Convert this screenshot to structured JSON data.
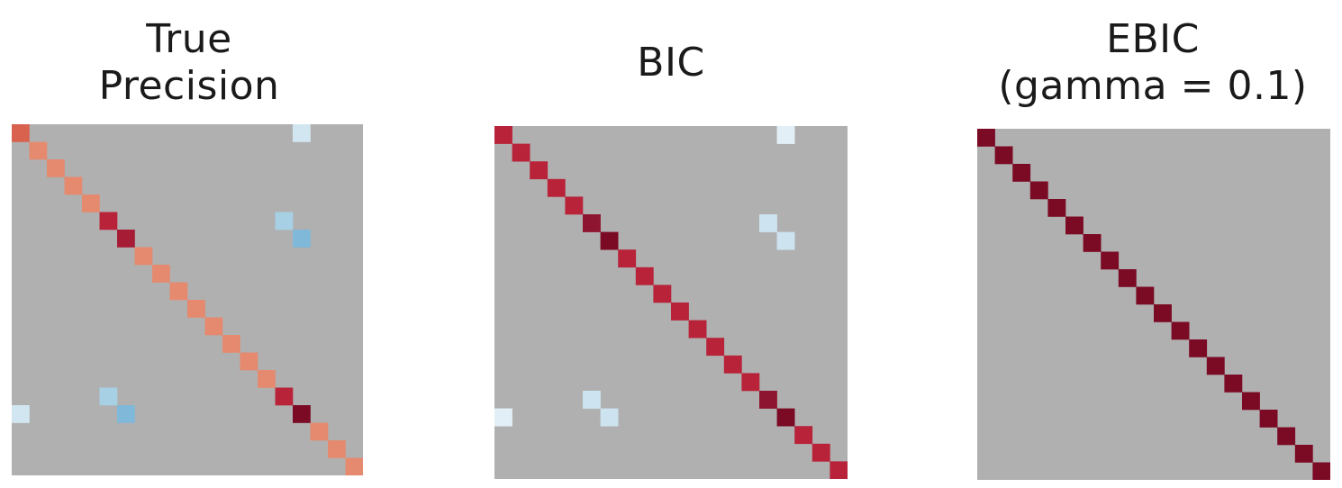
{
  "figure": {
    "background": "#ffffff",
    "cell_background": "#b0b0b0"
  },
  "chart_data": [
    {
      "type": "heatmap",
      "title_lines": [
        "True",
        "Precision"
      ],
      "size": 20,
      "background_color": "#b0b0b0",
      "diagonal": [
        {
          "i": 0,
          "j": 0,
          "color": "#d9624f"
        },
        {
          "i": 1,
          "j": 1,
          "color": "#e58a6f"
        },
        {
          "i": 2,
          "j": 2,
          "color": "#e58a6f"
        },
        {
          "i": 3,
          "j": 3,
          "color": "#e58a6f"
        },
        {
          "i": 4,
          "j": 4,
          "color": "#e58a6f"
        },
        {
          "i": 5,
          "j": 5,
          "color": "#b8233a"
        },
        {
          "i": 6,
          "j": 6,
          "color": "#a61c34"
        },
        {
          "i": 7,
          "j": 7,
          "color": "#e58a6f"
        },
        {
          "i": 8,
          "j": 8,
          "color": "#e58a6f"
        },
        {
          "i": 9,
          "j": 9,
          "color": "#e58a6f"
        },
        {
          "i": 10,
          "j": 10,
          "color": "#e58a6f"
        },
        {
          "i": 11,
          "j": 11,
          "color": "#e58a6f"
        },
        {
          "i": 12,
          "j": 12,
          "color": "#e58a6f"
        },
        {
          "i": 13,
          "j": 13,
          "color": "#e58a6f"
        },
        {
          "i": 14,
          "j": 14,
          "color": "#e58a6f"
        },
        {
          "i": 15,
          "j": 15,
          "color": "#b8233a"
        },
        {
          "i": 16,
          "j": 16,
          "color": "#7b0a25"
        },
        {
          "i": 17,
          "j": 17,
          "color": "#e58a6f"
        },
        {
          "i": 18,
          "j": 18,
          "color": "#e58a6f"
        },
        {
          "i": 19,
          "j": 19,
          "color": "#e58a6f"
        }
      ],
      "off_diagonal": [
        {
          "i": 0,
          "j": 16,
          "color": "#d1e6f1"
        },
        {
          "i": 5,
          "j": 15,
          "color": "#a7d0e4"
        },
        {
          "i": 6,
          "j": 16,
          "color": "#7fb8d9"
        },
        {
          "i": 15,
          "j": 5,
          "color": "#a7d0e4"
        },
        {
          "i": 16,
          "j": 6,
          "color": "#7fb8d9"
        },
        {
          "i": 16,
          "j": 0,
          "color": "#d1e6f1"
        }
      ]
    },
    {
      "type": "heatmap",
      "title_lines": [
        "BIC"
      ],
      "size": 20,
      "background_color": "#b0b0b0",
      "diagonal": [
        {
          "i": 0,
          "j": 0,
          "color": "#b8233a"
        },
        {
          "i": 1,
          "j": 1,
          "color": "#b8233a"
        },
        {
          "i": 2,
          "j": 2,
          "color": "#b8233a"
        },
        {
          "i": 3,
          "j": 3,
          "color": "#b8233a"
        },
        {
          "i": 4,
          "j": 4,
          "color": "#b8233a"
        },
        {
          "i": 5,
          "j": 5,
          "color": "#8e1530"
        },
        {
          "i": 6,
          "j": 6,
          "color": "#7b0a25"
        },
        {
          "i": 7,
          "j": 7,
          "color": "#b8233a"
        },
        {
          "i": 8,
          "j": 8,
          "color": "#b8233a"
        },
        {
          "i": 9,
          "j": 9,
          "color": "#b8233a"
        },
        {
          "i": 10,
          "j": 10,
          "color": "#b8233a"
        },
        {
          "i": 11,
          "j": 11,
          "color": "#b8233a"
        },
        {
          "i": 12,
          "j": 12,
          "color": "#b8233a"
        },
        {
          "i": 13,
          "j": 13,
          "color": "#b8233a"
        },
        {
          "i": 14,
          "j": 14,
          "color": "#b8233a"
        },
        {
          "i": 15,
          "j": 15,
          "color": "#8e1530"
        },
        {
          "i": 16,
          "j": 16,
          "color": "#7b0a25"
        },
        {
          "i": 17,
          "j": 17,
          "color": "#b8233a"
        },
        {
          "i": 18,
          "j": 18,
          "color": "#b8233a"
        },
        {
          "i": 19,
          "j": 19,
          "color": "#b8233a"
        }
      ],
      "off_diagonal": [
        {
          "i": 0,
          "j": 16,
          "color": "#e3eff6"
        },
        {
          "i": 5,
          "j": 15,
          "color": "#cde3ef"
        },
        {
          "i": 6,
          "j": 16,
          "color": "#cde3ef"
        },
        {
          "i": 15,
          "j": 5,
          "color": "#cde3ef"
        },
        {
          "i": 16,
          "j": 6,
          "color": "#cde3ef"
        },
        {
          "i": 16,
          "j": 0,
          "color": "#e3eff6"
        }
      ]
    },
    {
      "type": "heatmap",
      "title_lines": [
        "EBIC",
        "(gamma = 0.1)"
      ],
      "size": 20,
      "background_color": "#b0b0b0",
      "diagonal": [
        {
          "i": 0,
          "j": 0,
          "color": "#7b0a25"
        },
        {
          "i": 1,
          "j": 1,
          "color": "#7b0a25"
        },
        {
          "i": 2,
          "j": 2,
          "color": "#7b0a25"
        },
        {
          "i": 3,
          "j": 3,
          "color": "#7b0a25"
        },
        {
          "i": 4,
          "j": 4,
          "color": "#7b0a25"
        },
        {
          "i": 5,
          "j": 5,
          "color": "#7b0a25"
        },
        {
          "i": 6,
          "j": 6,
          "color": "#7b0a25"
        },
        {
          "i": 7,
          "j": 7,
          "color": "#7b0a25"
        },
        {
          "i": 8,
          "j": 8,
          "color": "#7b0a25"
        },
        {
          "i": 9,
          "j": 9,
          "color": "#7b0a25"
        },
        {
          "i": 10,
          "j": 10,
          "color": "#7b0a25"
        },
        {
          "i": 11,
          "j": 11,
          "color": "#7b0a25"
        },
        {
          "i": 12,
          "j": 12,
          "color": "#7b0a25"
        },
        {
          "i": 13,
          "j": 13,
          "color": "#7b0a25"
        },
        {
          "i": 14,
          "j": 14,
          "color": "#7b0a25"
        },
        {
          "i": 15,
          "j": 15,
          "color": "#7b0a25"
        },
        {
          "i": 16,
          "j": 16,
          "color": "#7b0a25"
        },
        {
          "i": 17,
          "j": 17,
          "color": "#7b0a25"
        },
        {
          "i": 18,
          "j": 18,
          "color": "#7b0a25"
        },
        {
          "i": 19,
          "j": 19,
          "color": "#7b0a25"
        }
      ],
      "off_diagonal": []
    }
  ]
}
